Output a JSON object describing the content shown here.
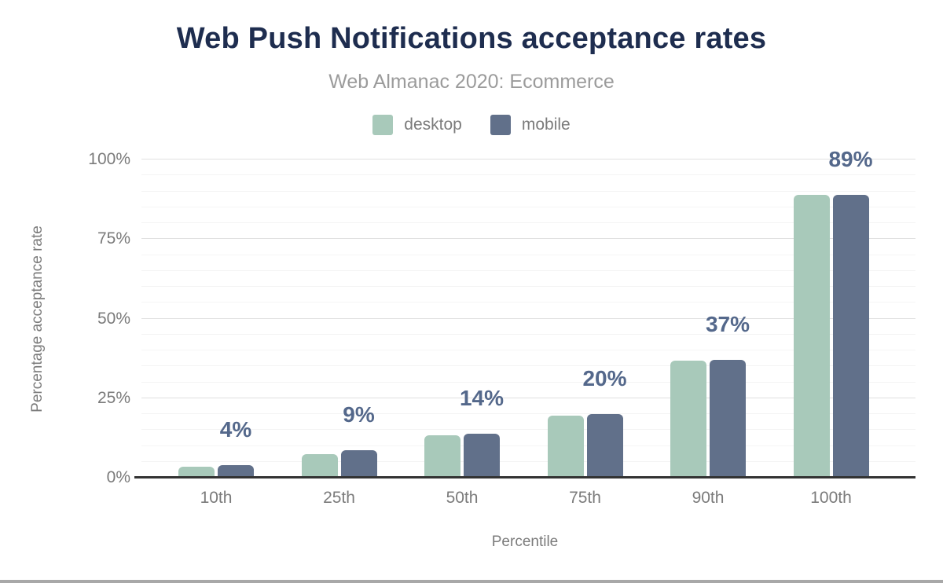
{
  "colors": {
    "background": "#ffffff",
    "title": "#1e2d4f",
    "subtitle": "#9b9b9b",
    "axis_text": "#7b7b7b",
    "value_label": "#54688b",
    "grid_major": "#e0e0e0",
    "grid_minor": "#f4f4f4",
    "baseline": "#333333",
    "footer_bar": "#a8a8a8",
    "desktop": "#a8c9ba",
    "mobile": "#61708a"
  },
  "legend": [
    {
      "label": "desktop",
      "color": "#a8c9ba"
    },
    {
      "label": "mobile",
      "color": "#61708a"
    }
  ],
  "chart_data": {
    "type": "bar",
    "title": "Web Push Notifications acceptance rates",
    "subtitle": "Web Almanac 2020: Ecommerce",
    "categories": [
      "10th",
      "25th",
      "50th",
      "75th",
      "90th",
      "100th"
    ],
    "series": [
      {
        "name": "desktop",
        "color": "#a8c9ba",
        "values": [
          3.5,
          7.4,
          13.3,
          19.4,
          36.8,
          88.8
        ]
      },
      {
        "name": "mobile",
        "color": "#61708a",
        "values": [
          3.9,
          8.6,
          13.8,
          20.0,
          37.0,
          88.8
        ]
      }
    ],
    "bar_labels": [
      "4%",
      "9%",
      "14%",
      "20%",
      "37%",
      "89%"
    ],
    "xlabel": "Percentile",
    "ylabel": "Percentage acceptance rate",
    "ylim": [
      0,
      100
    ],
    "yticks": [
      "0%",
      "25%",
      "50%",
      "75%",
      "100%"
    ],
    "grid": {
      "major_step": 25,
      "minor_step": 5,
      "visible": true
    },
    "legend_position": "top"
  }
}
